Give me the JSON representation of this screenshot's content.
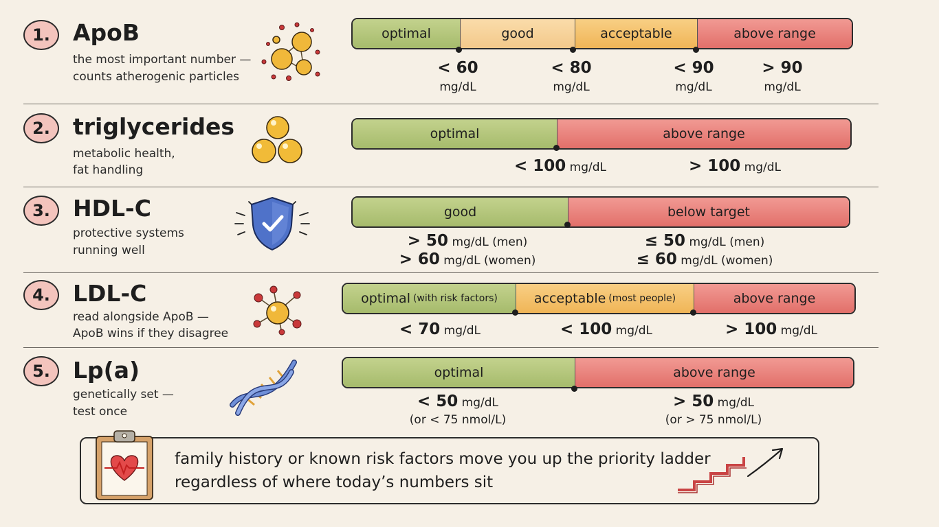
{
  "rows": [
    {
      "number": "1.",
      "title": "ApoB",
      "subtitle_lines": [
        "the most important number —",
        "counts atherogenic particles"
      ],
      "icon": "particle-cluster-icon",
      "segments": [
        "optimal",
        "good",
        "acceptable",
        "above range"
      ],
      "thresholds": [
        {
          "value": "< 60",
          "unit": "mg/dL"
        },
        {
          "value": "< 80",
          "unit": "mg/dL"
        },
        {
          "value": "< 90",
          "unit": "mg/dL"
        },
        {
          "value": "> 90",
          "unit": "mg/dL"
        }
      ]
    },
    {
      "number": "2.",
      "title": "triglycerides",
      "subtitle_lines": [
        "metabolic health,",
        "fat handling"
      ],
      "icon": "fat-droplets-icon",
      "segments": [
        "optimal",
        "above range"
      ],
      "thresholds": [
        {
          "value": "< 100",
          "unit": "mg/dL"
        },
        {
          "value": "> 100",
          "unit": "mg/dL"
        }
      ]
    },
    {
      "number": "3.",
      "title": "HDL-C",
      "subtitle_lines": [
        "protective systems",
        "running well"
      ],
      "icon": "shield-check-icon",
      "segments": [
        "good",
        "below target"
      ],
      "thresholds": [
        {
          "line1": {
            "value": "> 50",
            "unit": "mg/dL",
            "note": "(men)"
          },
          "line2": {
            "value": "> 60",
            "unit": "mg/dL",
            "note": "(women)"
          }
        },
        {
          "line1": {
            "value": "≤ 50",
            "unit": "mg/dL",
            "note": "(men)"
          },
          "line2": {
            "value": "≤ 60",
            "unit": "mg/dL",
            "note": "(women)"
          }
        }
      ]
    },
    {
      "number": "4.",
      "title": "LDL-C",
      "subtitle_lines": [
        "read alongside ApoB —",
        "ApoB wins if they disagree"
      ],
      "icon": "molecule-icon",
      "segments": [
        {
          "label": "optimal",
          "note": "(with risk factors)"
        },
        {
          "label": "acceptable",
          "note": "(most people)"
        },
        {
          "label": "above range",
          "note": ""
        }
      ],
      "thresholds": [
        {
          "value": "< 70",
          "unit": "mg/dL"
        },
        {
          "value": "< 100",
          "unit": "mg/dL"
        },
        {
          "value": "> 100",
          "unit": "mg/dL"
        }
      ]
    },
    {
      "number": "5.",
      "title": "Lp(a)",
      "subtitle_lines": [
        "genetically set —",
        "test once"
      ],
      "icon": "dna-helix-icon",
      "segments": [
        "optimal",
        "above range"
      ],
      "thresholds": [
        {
          "value": "< 50",
          "unit": "mg/dL",
          "alt": "(or < 75 nmol/L)"
        },
        {
          "value": "> 50",
          "unit": "mg/dL",
          "alt": "(or > 75 nmol/L)"
        }
      ]
    }
  ],
  "footer": {
    "lines": [
      "family history or known risk factors move you up the priority ladder",
      "regardless of where today’s numbers sit"
    ],
    "left_icon": "clipboard-heart-icon",
    "right_icon": "stairs-arrow-icon"
  },
  "colors": {
    "green": "#b4c77c",
    "light_yellow": "#f6d39b",
    "orange": "#f2bf6a",
    "red": "#e8847d",
    "badge": "#f3c4bd",
    "background": "#f6f0e6"
  }
}
